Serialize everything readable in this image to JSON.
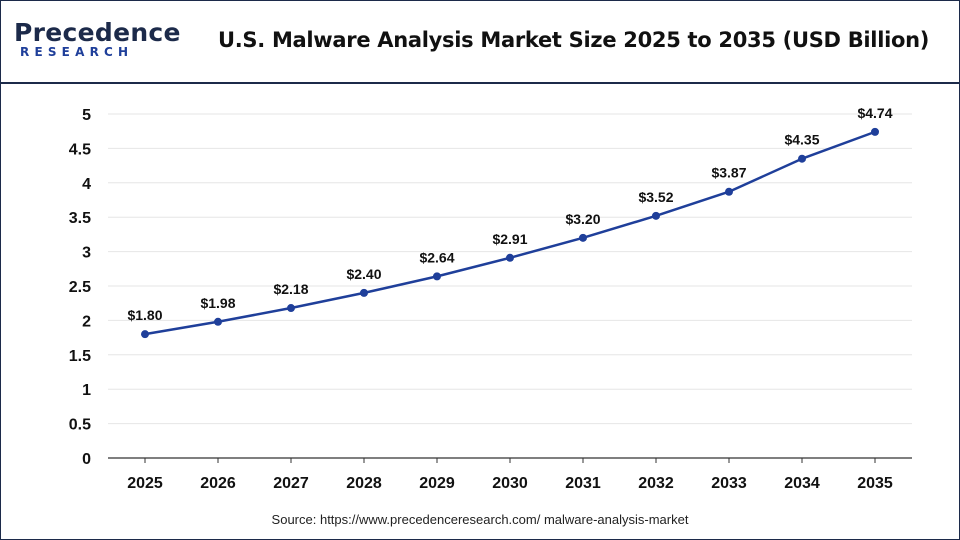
{
  "header": {
    "logo_main": "Precedence",
    "logo_sub": "RESEARCH",
    "title": "U.S. Malware Analysis Market Size 2025 to 2035 (USD Billion)"
  },
  "footer": {
    "source": "Source: https://www.precedenceresearch.com/ malware-analysis-market"
  },
  "colors": {
    "line": "#1f3f9a",
    "grid": "#e6e6e6",
    "axis": "#333333",
    "brand_dark": "#1c2a4a",
    "brand_blue": "#1f3f9a"
  },
  "chart_data": {
    "type": "line",
    "title": "U.S. Malware Analysis Market Size 2025 to 2035 (USD Billion)",
    "xlabel": "",
    "ylabel": "",
    "categories": [
      "2025",
      "2026",
      "2027",
      "2028",
      "2029",
      "2030",
      "2031",
      "2032",
      "2033",
      "2034",
      "2035"
    ],
    "values": [
      1.8,
      1.98,
      2.18,
      2.4,
      2.64,
      2.91,
      3.2,
      3.52,
      3.87,
      4.35,
      4.74
    ],
    "data_labels": [
      "$1.80",
      "$1.98",
      "$2.18",
      "$2.40",
      "$2.64",
      "$2.91",
      "$3.20",
      "$3.52",
      "$3.87",
      "$4.35",
      "$4.74"
    ],
    "ylim": [
      0,
      5
    ],
    "yticks": [
      "0",
      "0.5",
      "1",
      "1.5",
      "2",
      "2.5",
      "3",
      "3.5",
      "4",
      "4.5",
      "5"
    ],
    "grid": true,
    "legend": "none"
  }
}
